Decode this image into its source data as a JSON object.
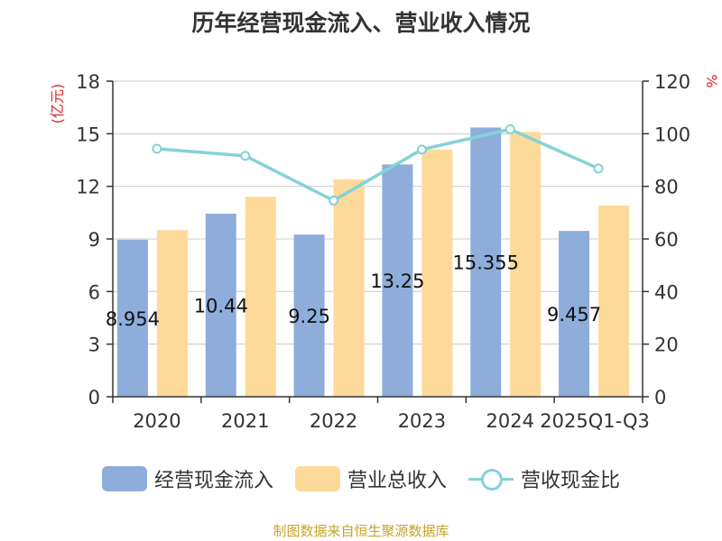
{
  "chart_data": {
    "type": "bar",
    "title": "历年经营现金流入、营业收入情况",
    "categories": [
      "2020",
      "2021",
      "2022",
      "2023",
      "2024",
      "2025Q1-Q3"
    ],
    "series": [
      {
        "name": "经营现金流入",
        "kind": "bar",
        "axis": "left",
        "color": "#8eadda",
        "values": [
          8.954,
          10.44,
          9.25,
          13.25,
          15.355,
          9.457
        ],
        "labels": [
          "8.954",
          "10.44",
          "9.25",
          "13.25",
          "15.355",
          "9.457"
        ]
      },
      {
        "name": "营业总收入",
        "kind": "bar",
        "axis": "left",
        "color": "#fdd99a",
        "values": [
          9.5,
          11.4,
          12.4,
          14.1,
          15.1,
          10.9
        ]
      },
      {
        "name": "营收现金比",
        "kind": "line",
        "axis": "right",
        "color": "#86d1d9",
        "values": [
          94.3,
          91.6,
          74.6,
          94.0,
          101.7,
          86.8
        ]
      }
    ],
    "y_left": {
      "unit": "(亿元)",
      "ylim": [
        0,
        18
      ],
      "ticks": [
        "0",
        "3",
        "6",
        "9",
        "12",
        "15",
        "18"
      ]
    },
    "y_right": {
      "unit": "%",
      "ylim": [
        0,
        120
      ],
      "ticks": [
        "0",
        "20",
        "40",
        "60",
        "80",
        "100",
        "120"
      ]
    },
    "grid": true,
    "legend_position": "bottom"
  },
  "legend": {
    "items": [
      {
        "label": "经营现金流入",
        "kind": "bar",
        "color": "#8eadda"
      },
      {
        "label": "营业总收入",
        "kind": "bar",
        "color": "#fdd99a"
      },
      {
        "label": "营收现金比",
        "kind": "line",
        "color": "#86d1d9"
      }
    ]
  },
  "source": "制图数据来自恒生聚源数据库",
  "colors": {
    "axis_unit": "#e0242b",
    "text": "#333333",
    "grid": "#cccccc",
    "source": "#c9a227"
  }
}
